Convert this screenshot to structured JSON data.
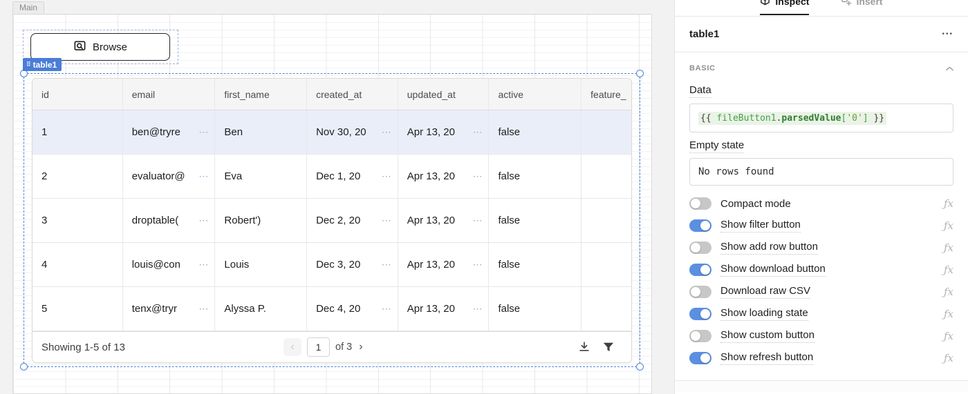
{
  "icons": {
    "cell_expand": "⋯",
    "drag_handle": "⠿",
    "menu": "•••",
    "fx": "ƒx"
  },
  "colors": {
    "accent_blue": "#4e82d8",
    "tag_blue": "#4a7dd8",
    "toggle_on_blue": "#5b8fe0",
    "selected_row": "#e9eef9",
    "code_green": "#43a047"
  },
  "canvas": {
    "main_tab": "Main",
    "file_button": {
      "label": "Browse"
    },
    "component_tag": "table1",
    "table": {
      "columns": [
        "id",
        "email",
        "first_name",
        "created_at",
        "updated_at",
        "active",
        "feature_"
      ],
      "selected_row": 0,
      "rows": [
        {
          "id": "1",
          "email": "ben@tryre",
          "first_name": "Ben",
          "created_at": "Nov 30, 20",
          "updated_at": "Apr 13, 20",
          "active": "false",
          "feature": ""
        },
        {
          "id": "2",
          "email": "evaluator@",
          "first_name": "Eva",
          "created_at": "Dec 1, 20",
          "updated_at": "Apr 13, 20",
          "active": "false",
          "feature": ""
        },
        {
          "id": "3",
          "email": "droptable(",
          "first_name": "Robert')",
          "created_at": "Dec 2, 20",
          "updated_at": "Apr 13, 20",
          "active": "false",
          "feature": ""
        },
        {
          "id": "4",
          "email": "louis@con",
          "first_name": "Louis",
          "created_at": "Dec 3, 20",
          "updated_at": "Apr 13, 20",
          "active": "false",
          "feature": ""
        },
        {
          "id": "5",
          "email": "tenx@tryr",
          "first_name": "Alyssa P.",
          "created_at": "Dec 4, 20",
          "updated_at": "Apr 13, 20",
          "active": "false",
          "feature": ""
        }
      ],
      "footer": {
        "showing": "Showing 1-5 of 13",
        "prev": "‹",
        "page": "1",
        "of": "of 3",
        "next": "›"
      }
    }
  },
  "inspector": {
    "tabs": [
      {
        "label": "Inspect",
        "active": true
      },
      {
        "label": "Insert",
        "active": false
      }
    ],
    "title": "table1",
    "section": "BASIC",
    "data_label": "Data",
    "data_expression": [
      {
        "t": "{{ ",
        "c": "brace"
      },
      {
        "t": "fileButton1",
        "c": "ident"
      },
      {
        "t": ".",
        "c": "dot"
      },
      {
        "t": "parsedValue",
        "c": "prop"
      },
      {
        "t": "[",
        "c": "brkt"
      },
      {
        "t": "'0'",
        "c": "str"
      },
      {
        "t": "] ",
        "c": "brkt"
      },
      {
        "t": "}}",
        "c": "brace"
      }
    ],
    "empty_state_label": "Empty state",
    "empty_state_value": "No rows found",
    "toggles": [
      {
        "label": "Compact mode",
        "on": false,
        "underline": false
      },
      {
        "label": "Show filter button",
        "on": true,
        "underline": true
      },
      {
        "label": "Show add row button",
        "on": false,
        "underline": true
      },
      {
        "label": "Show download button",
        "on": true,
        "underline": true
      },
      {
        "label": "Download raw CSV",
        "on": false,
        "underline": true
      },
      {
        "label": "Show loading state",
        "on": true,
        "underline": true
      },
      {
        "label": "Show custom button",
        "on": false,
        "underline": true
      },
      {
        "label": "Show refresh button",
        "on": true,
        "underline": true
      }
    ]
  }
}
